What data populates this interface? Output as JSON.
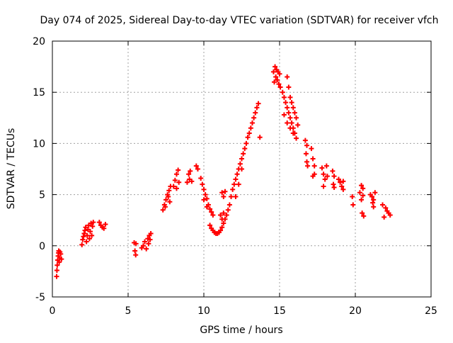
{
  "chart_data": {
    "type": "scatter",
    "title": "Day 074 of 2025, Sidereal Day-to-day VTEC variation (SDTVAR) for receiver vfch",
    "xlabel": "GPS time / hours",
    "ylabel": "SDTVAR / TECUs",
    "xlim": [
      0,
      25
    ],
    "ylim": [
      -5,
      20
    ],
    "grid": true,
    "x_ticks": [
      0,
      5,
      10,
      15,
      20,
      25
    ],
    "x_tick_labels": [
      "0",
      "5",
      "10",
      "15",
      "20",
      "25"
    ],
    "y_ticks": [
      -5,
      0,
      5,
      10,
      15,
      20
    ],
    "y_tick_labels": [
      "-5",
      "0",
      "5",
      "10",
      "15",
      "20"
    ],
    "marker": "+",
    "marker_color": "#ff0000",
    "series": [
      {
        "name": "SDTVAR",
        "points": [
          [
            0.28,
            -3.0
          ],
          [
            0.3,
            -2.4
          ],
          [
            0.32,
            -1.9
          ],
          [
            0.35,
            -1.4
          ],
          [
            0.38,
            -1.0
          ],
          [
            0.4,
            -0.7
          ],
          [
            0.42,
            -0.5
          ],
          [
            0.45,
            -1.6
          ],
          [
            0.48,
            -1.2
          ],
          [
            0.5,
            -0.6
          ],
          [
            0.55,
            -0.8
          ],
          [
            0.6,
            -1.3
          ],
          [
            1.95,
            0.1
          ],
          [
            2.0,
            0.6
          ],
          [
            2.05,
            0.9
          ],
          [
            2.1,
            1.2
          ],
          [
            2.15,
            1.5
          ],
          [
            2.2,
            1.8
          ],
          [
            2.25,
            0.4
          ],
          [
            2.3,
            1.0
          ],
          [
            2.35,
            1.6
          ],
          [
            2.4,
            2.0
          ],
          [
            2.45,
            0.7
          ],
          [
            2.5,
            1.4
          ],
          [
            2.55,
            2.2
          ],
          [
            2.6,
            1.0
          ],
          [
            2.65,
            1.9
          ],
          [
            2.7,
            2.3
          ],
          [
            3.1,
            2.3
          ],
          [
            3.2,
            2.0
          ],
          [
            3.3,
            1.8
          ],
          [
            3.4,
            1.7
          ],
          [
            3.5,
            2.1
          ],
          [
            5.4,
            0.3
          ],
          [
            5.45,
            -0.5
          ],
          [
            5.5,
            -0.9
          ],
          [
            5.52,
            0.2
          ],
          [
            5.9,
            -0.2
          ],
          [
            6.0,
            0.0
          ],
          [
            6.1,
            0.4
          ],
          [
            6.2,
            -0.3
          ],
          [
            6.3,
            0.7
          ],
          [
            6.35,
            0.2
          ],
          [
            6.4,
            1.0
          ],
          [
            6.45,
            0.6
          ],
          [
            6.5,
            1.2
          ],
          [
            7.3,
            3.5
          ],
          [
            7.4,
            4.0
          ],
          [
            7.5,
            4.5
          ],
          [
            7.6,
            5.0
          ],
          [
            7.7,
            5.4
          ],
          [
            7.8,
            5.8
          ],
          [
            7.45,
            3.8
          ],
          [
            7.65,
            4.8
          ],
          [
            7.75,
            4.3
          ],
          [
            8.0,
            5.8
          ],
          [
            8.1,
            6.4
          ],
          [
            8.2,
            7.0
          ],
          [
            8.3,
            7.4
          ],
          [
            8.2,
            5.6
          ],
          [
            8.35,
            6.2
          ],
          [
            8.9,
            6.2
          ],
          [
            9.0,
            7.0
          ],
          [
            9.1,
            7.3
          ],
          [
            9.05,
            6.5
          ],
          [
            9.2,
            6.3
          ],
          [
            9.5,
            7.8
          ],
          [
            9.6,
            7.5
          ],
          [
            9.8,
            6.6
          ],
          [
            9.9,
            6.0
          ],
          [
            10.0,
            5.5
          ],
          [
            10.1,
            5.0
          ],
          [
            10.2,
            4.6
          ],
          [
            10.3,
            4.0
          ],
          [
            10.4,
            3.6
          ],
          [
            10.5,
            3.3
          ],
          [
            10.6,
            3.0
          ],
          [
            10.0,
            4.5
          ],
          [
            10.2,
            3.8
          ],
          [
            10.4,
            2.0
          ],
          [
            10.5,
            1.7
          ],
          [
            10.6,
            1.5
          ],
          [
            10.7,
            1.3
          ],
          [
            10.8,
            1.2
          ],
          [
            10.9,
            1.2
          ],
          [
            11.0,
            1.3
          ],
          [
            11.1,
            1.5
          ],
          [
            11.2,
            1.8
          ],
          [
            11.3,
            2.2
          ],
          [
            11.4,
            2.6
          ],
          [
            11.5,
            3.0
          ],
          [
            11.6,
            3.5
          ],
          [
            11.1,
            3.0
          ],
          [
            11.2,
            2.6
          ],
          [
            11.3,
            3.2
          ],
          [
            11.2,
            5.2
          ],
          [
            11.3,
            4.8
          ],
          [
            11.4,
            5.3
          ],
          [
            11.7,
            4.0
          ],
          [
            11.8,
            4.8
          ],
          [
            11.9,
            5.5
          ],
          [
            12.0,
            6.0
          ],
          [
            12.1,
            6.5
          ],
          [
            12.2,
            7.0
          ],
          [
            12.3,
            7.5
          ],
          [
            12.4,
            8.0
          ],
          [
            12.5,
            8.5
          ],
          [
            12.6,
            9.0
          ],
          [
            12.1,
            4.8
          ],
          [
            12.3,
            6.0
          ],
          [
            12.5,
            7.5
          ],
          [
            12.7,
            9.5
          ],
          [
            12.8,
            10.0
          ],
          [
            12.9,
            10.6
          ],
          [
            13.0,
            11.0
          ],
          [
            13.1,
            11.5
          ],
          [
            13.2,
            12.0
          ],
          [
            13.3,
            12.5
          ],
          [
            13.4,
            13.0
          ],
          [
            13.5,
            13.5
          ],
          [
            13.6,
            13.9
          ],
          [
            13.7,
            10.6
          ],
          [
            14.6,
            17.0
          ],
          [
            14.7,
            17.5
          ],
          [
            14.8,
            17.2
          ],
          [
            14.9,
            17.0
          ],
          [
            15.0,
            16.8
          ],
          [
            14.65,
            16.0
          ],
          [
            14.75,
            16.5
          ],
          [
            14.85,
            16.2
          ],
          [
            14.95,
            15.8
          ],
          [
            15.05,
            15.5
          ],
          [
            15.2,
            15.0
          ],
          [
            15.3,
            14.5
          ],
          [
            15.4,
            14.0
          ],
          [
            15.5,
            13.5
          ],
          [
            15.6,
            13.0
          ],
          [
            15.7,
            12.5
          ],
          [
            15.8,
            12.0
          ],
          [
            15.9,
            11.5
          ],
          [
            16.0,
            11.0
          ],
          [
            16.1,
            10.5
          ],
          [
            15.3,
            12.8
          ],
          [
            15.5,
            12.0
          ],
          [
            15.7,
            11.5
          ],
          [
            15.9,
            11.0
          ],
          [
            15.5,
            16.5
          ],
          [
            15.6,
            15.5
          ],
          [
            15.7,
            14.5
          ],
          [
            15.8,
            14.0
          ],
          [
            15.9,
            13.5
          ],
          [
            16.0,
            13.0
          ],
          [
            16.1,
            12.5
          ],
          [
            16.2,
            11.8
          ],
          [
            16.7,
            10.3
          ],
          [
            16.8,
            9.8
          ],
          [
            16.75,
            9.0
          ],
          [
            16.8,
            8.2
          ],
          [
            16.85,
            7.8
          ],
          [
            17.1,
            9.5
          ],
          [
            17.2,
            8.5
          ],
          [
            17.3,
            7.8
          ],
          [
            17.3,
            7.0
          ],
          [
            17.2,
            6.8
          ],
          [
            17.8,
            7.6
          ],
          [
            17.9,
            7.0
          ],
          [
            18.0,
            6.5
          ],
          [
            17.9,
            5.8
          ],
          [
            18.1,
            7.8
          ],
          [
            18.15,
            6.8
          ],
          [
            18.5,
            7.3
          ],
          [
            18.6,
            6.8
          ],
          [
            18.55,
            6.0
          ],
          [
            18.6,
            5.7
          ],
          [
            18.9,
            6.5
          ],
          [
            19.0,
            6.2
          ],
          [
            19.1,
            5.8
          ],
          [
            19.2,
            5.5
          ],
          [
            19.2,
            6.3
          ],
          [
            19.8,
            4.8
          ],
          [
            19.85,
            4.0
          ],
          [
            20.4,
            5.9
          ],
          [
            20.5,
            5.6
          ],
          [
            20.3,
            5.2
          ],
          [
            20.4,
            4.5
          ],
          [
            20.5,
            4.9
          ],
          [
            20.45,
            3.2
          ],
          [
            20.55,
            2.9
          ],
          [
            21.0,
            5.0
          ],
          [
            21.1,
            4.8
          ],
          [
            21.15,
            4.2
          ],
          [
            21.2,
            4.5
          ],
          [
            21.3,
            5.2
          ],
          [
            21.2,
            3.8
          ],
          [
            21.8,
            4.0
          ],
          [
            22.0,
            3.7
          ],
          [
            22.1,
            3.4
          ],
          [
            22.2,
            3.2
          ],
          [
            22.3,
            3.0
          ],
          [
            21.9,
            2.8
          ]
        ]
      }
    ]
  }
}
